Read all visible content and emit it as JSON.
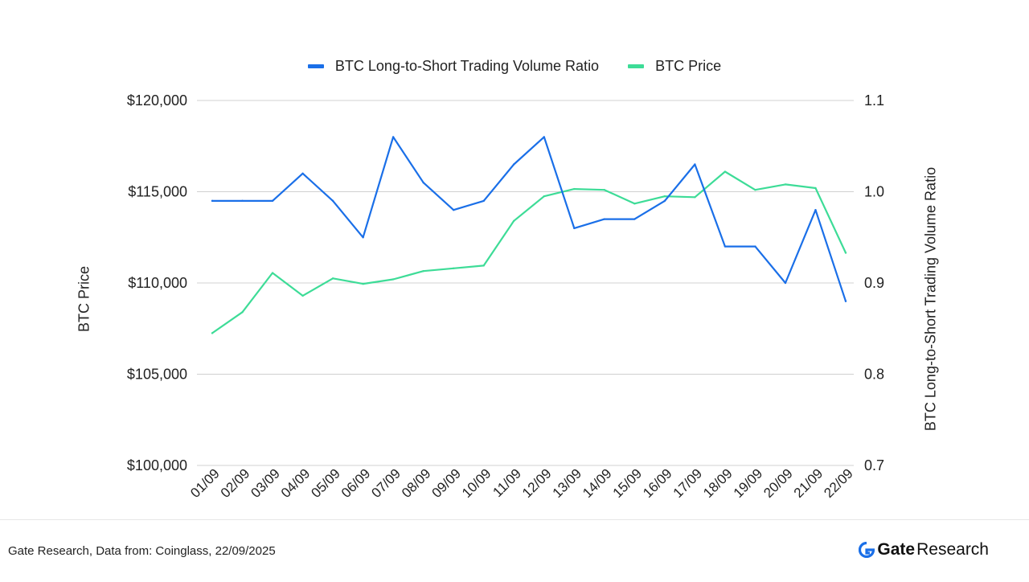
{
  "legend": {
    "ratio_label": "BTC Long-to-Short Trading Volume Ratio",
    "price_label": "BTC Price"
  },
  "axes": {
    "left_title": "BTC Price",
    "right_title": "BTC Long-to-Short Trading Volume Ratio"
  },
  "footer": {
    "source": "Gate Research, Data from: Coinglass, 22/09/2025",
    "brand_gate": "Gate",
    "brand_research": "Research"
  },
  "colors": {
    "ratio": "#1a6fe8",
    "price": "#3ddc97",
    "grid": "#d0d0d0",
    "brand": "#1a6fe8"
  },
  "chart_data": {
    "type": "line",
    "x": [
      "01/09",
      "02/09",
      "03/09",
      "04/09",
      "05/09",
      "06/09",
      "07/09",
      "08/09",
      "09/09",
      "10/09",
      "11/09",
      "12/09",
      "13/09",
      "14/09",
      "15/09",
      "16/09",
      "17/09",
      "18/09",
      "19/09",
      "20/09",
      "21/09",
      "22/09"
    ],
    "series": [
      {
        "name": "BTC Long-to-Short Trading Volume Ratio",
        "axis": "right",
        "values": [
          0.99,
          0.99,
          0.99,
          1.02,
          0.99,
          0.95,
          1.06,
          1.01,
          0.98,
          0.99,
          1.03,
          1.06,
          0.96,
          0.97,
          0.97,
          0.99,
          1.03,
          0.94,
          0.94,
          0.9,
          0.98,
          0.88
        ]
      },
      {
        "name": "BTC Price",
        "axis": "left",
        "values": [
          107250,
          108400,
          110550,
          109300,
          110250,
          109950,
          110200,
          110650,
          110800,
          110950,
          113400,
          114750,
          115150,
          115100,
          114350,
          114750,
          114700,
          116100,
          115100,
          115400,
          115200,
          111650
        ]
      }
    ],
    "ylim_left": [
      100000,
      120000
    ],
    "yticks_left": [
      "$100,000",
      "$105,000",
      "$110,000",
      "$115,000",
      "$120,000"
    ],
    "ylim_right": [
      0.7,
      1.1
    ],
    "yticks_right": [
      "0.7",
      "0.8",
      "0.9",
      "1.0",
      "1.1"
    ],
    "ylabel_left": "BTC Price",
    "ylabel_right": "BTC Long-to-Short Trading Volume Ratio",
    "grid": true,
    "legend_position": "top-center"
  }
}
